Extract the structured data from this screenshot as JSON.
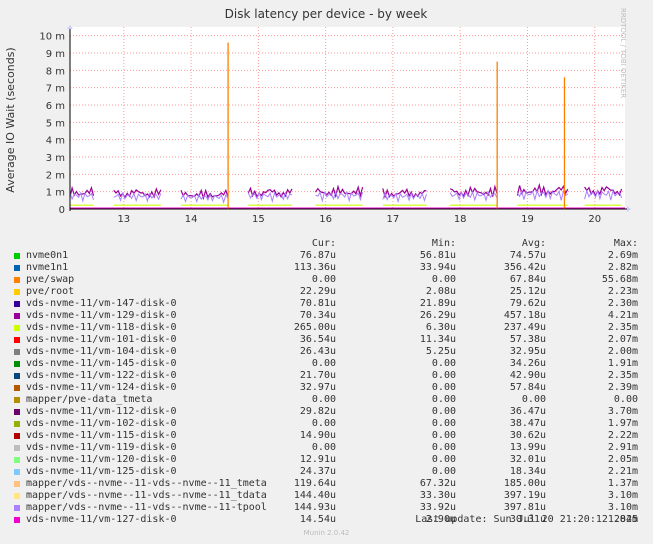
{
  "chart_data": {
    "type": "line",
    "title": "Disk latency per device - by week",
    "ylabel": "Average IO Wait (seconds)",
    "ylim": [
      0,
      0.0105
    ],
    "yticks": [
      {
        "v": 0,
        "label": "0"
      },
      {
        "v": 0.001,
        "label": "1 m"
      },
      {
        "v": 0.002,
        "label": "2 m"
      },
      {
        "v": 0.003,
        "label": "3 m"
      },
      {
        "v": 0.004,
        "label": "4 m"
      },
      {
        "v": 0.005,
        "label": "5 m"
      },
      {
        "v": 0.006,
        "label": "6 m"
      },
      {
        "v": 0.007,
        "label": "7 m"
      },
      {
        "v": 0.008,
        "label": "8 m"
      },
      {
        "v": 0.009,
        "label": "9 m"
      },
      {
        "v": 0.01,
        "label": "10 m"
      }
    ],
    "xlim": [
      12.2,
      20.45
    ],
    "xticks": [
      "13",
      "14",
      "15",
      "16",
      "17",
      "18",
      "19",
      "20"
    ],
    "grid": true,
    "activity_bursts": [
      {
        "start": 12.2,
        "end": 12.55,
        "level": 0.00125
      },
      {
        "start": 12.85,
        "end": 13.55,
        "level": 0.0012
      },
      {
        "start": 13.85,
        "end": 14.55,
        "level": 0.0011
      },
      {
        "start": 14.85,
        "end": 15.5,
        "level": 0.00125
      },
      {
        "start": 15.85,
        "end": 16.55,
        "level": 0.0013
      },
      {
        "start": 16.85,
        "end": 17.5,
        "level": 0.0012
      },
      {
        "start": 17.85,
        "end": 18.55,
        "level": 0.0013
      },
      {
        "start": 18.85,
        "end": 19.6,
        "level": 0.0014
      },
      {
        "start": 19.85,
        "end": 20.4,
        "level": 0.0014
      }
    ],
    "spikes": [
      {
        "x": 14.55,
        "value": 0.0096,
        "series": "pve/swap"
      },
      {
        "x": 18.55,
        "value": 0.0085,
        "series": "pve/swap"
      },
      {
        "x": 19.55,
        "value": 0.0076,
        "series": "pve/swap"
      }
    ],
    "legend_header": {
      "cur": "Cur:",
      "min": "Min:",
      "avg": "Avg:",
      "max": "Max:"
    },
    "series": [
      {
        "name": "nvme0n1",
        "color": "#00cc00",
        "cur": "76.87u",
        "min": "56.81u",
        "avg": "74.57u",
        "max": "2.69m"
      },
      {
        "name": "nvme1n1",
        "color": "#0066b3",
        "cur": "113.36u",
        "min": "33.94u",
        "avg": "356.42u",
        "max": "2.82m"
      },
      {
        "name": "pve/swap",
        "color": "#ff8000",
        "cur": "0.00",
        "min": "0.00",
        "avg": "67.84u",
        "max": "55.68m"
      },
      {
        "name": "pve/root",
        "color": "#ffcc00",
        "cur": "22.29u",
        "min": "2.08u",
        "avg": "25.12u",
        "max": "2.23m"
      },
      {
        "name": "vds-nvme-11/vm-147-disk-0",
        "color": "#330099",
        "cur": "70.81u",
        "min": "21.89u",
        "avg": "79.62u",
        "max": "2.30m"
      },
      {
        "name": "vds-nvme-11/vm-129-disk-0",
        "color": "#990099",
        "cur": "70.34u",
        "min": "26.29u",
        "avg": "457.18u",
        "max": "4.21m"
      },
      {
        "name": "vds-nvme-11/vm-118-disk-0",
        "color": "#ccff00",
        "cur": "265.00u",
        "min": "6.30u",
        "avg": "237.49u",
        "max": "2.35m"
      },
      {
        "name": "vds-nvme-11/vm-101-disk-0",
        "color": "#ff0000",
        "cur": "36.54u",
        "min": "11.34u",
        "avg": "57.38u",
        "max": "2.07m"
      },
      {
        "name": "vds-nvme-11/vm-104-disk-0",
        "color": "#808080",
        "cur": "26.43u",
        "min": "5.25u",
        "avg": "32.95u",
        "max": "2.00m"
      },
      {
        "name": "vds-nvme-11/vm-145-disk-0",
        "color": "#008f00",
        "cur": "0.00",
        "min": "0.00",
        "avg": "34.26u",
        "max": "1.91m"
      },
      {
        "name": "vds-nvme-11/vm-122-disk-0",
        "color": "#00487d",
        "cur": "21.70u",
        "min": "0.00",
        "avg": "42.90u",
        "max": "2.35m"
      },
      {
        "name": "vds-nvme-11/vm-124-disk-0",
        "color": "#b35a00",
        "cur": "32.97u",
        "min": "0.00",
        "avg": "57.84u",
        "max": "2.39m"
      },
      {
        "name": "mapper/pve-data_tmeta",
        "color": "#b38f00",
        "cur": "0.00",
        "min": "0.00",
        "avg": "0.00",
        "max": "0.00"
      },
      {
        "name": "vds-nvme-11/vm-112-disk-0",
        "color": "#6b006b",
        "cur": "29.82u",
        "min": "0.00",
        "avg": "36.47u",
        "max": "3.70m"
      },
      {
        "name": "vds-nvme-11/vm-102-disk-0",
        "color": "#8fb300",
        "cur": "0.00",
        "min": "0.00",
        "avg": "38.47u",
        "max": "1.97m"
      },
      {
        "name": "vds-nvme-11/vm-115-disk-0",
        "color": "#b30000",
        "cur": "14.90u",
        "min": "0.00",
        "avg": "30.62u",
        "max": "2.22m"
      },
      {
        "name": "vds-nvme-11/vm-119-disk-0",
        "color": "#bebebe",
        "cur": "0.00",
        "min": "0.00",
        "avg": "13.99u",
        "max": "2.91m"
      },
      {
        "name": "vds-nvme-11/vm-120-disk-0",
        "color": "#80ff80",
        "cur": "12.91u",
        "min": "0.00",
        "avg": "32.01u",
        "max": "2.05m"
      },
      {
        "name": "vds-nvme-11/vm-125-disk-0",
        "color": "#80c9ff",
        "cur": "24.37u",
        "min": "0.00",
        "avg": "18.34u",
        "max": "2.21m"
      },
      {
        "name": "mapper/vds--nvme--11-vds--nvme--11_tmeta",
        "color": "#ffc080",
        "cur": "119.64u",
        "min": "67.32u",
        "avg": "185.00u",
        "max": "1.37m"
      },
      {
        "name": "mapper/vds--nvme--11-vds--nvme--11_tdata",
        "color": "#ffe680",
        "cur": "144.40u",
        "min": "33.30u",
        "avg": "397.19u",
        "max": "3.10m"
      },
      {
        "name": "mapper/vds--nvme--11-vds--nvme--11-tpool",
        "color": "#aa80ff",
        "cur": "144.93u",
        "min": "33.92u",
        "avg": "397.81u",
        "max": "3.10m"
      },
      {
        "name": "vds-nvme-11/vm-127-disk-0",
        "color": "#ee00cc",
        "cur": "14.54u",
        "min": "2.90u",
        "avg": "30.31u",
        "max": "1.84m"
      }
    ]
  },
  "footer": {
    "last_update": "Last update: Sun Jul 20 21:20:12 2025",
    "munin": "Munin 2.0.42",
    "side_text": "RRDTOOL / TOBI OETIKER"
  }
}
